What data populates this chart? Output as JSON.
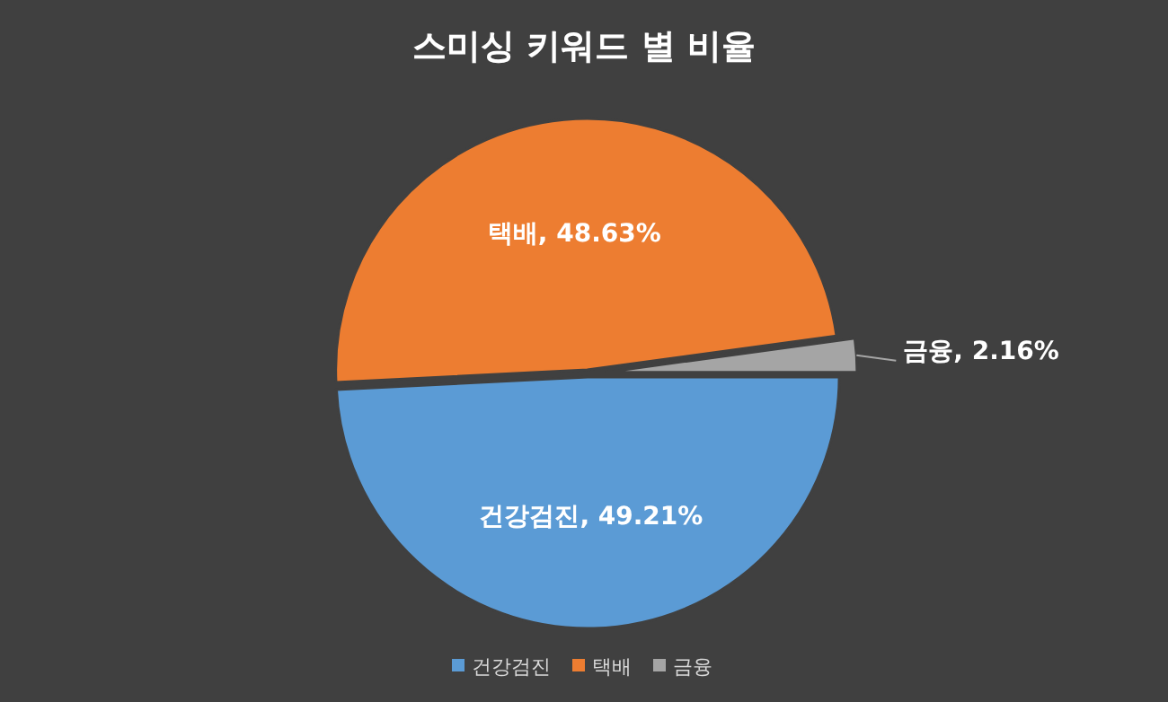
{
  "chart_data": {
    "type": "pie",
    "title": "스미싱 키워드 별 비율",
    "categories": [
      "건강검진",
      "택배",
      "금융"
    ],
    "values": [
      49.21,
      48.63,
      2.16
    ],
    "colors": [
      "#5b9bd5",
      "#ed7d31",
      "#a5a5a5"
    ],
    "value_labels": [
      ", 49.21%",
      ", 48.63%",
      ", 2.16%"
    ],
    "legend": "bottom"
  }
}
